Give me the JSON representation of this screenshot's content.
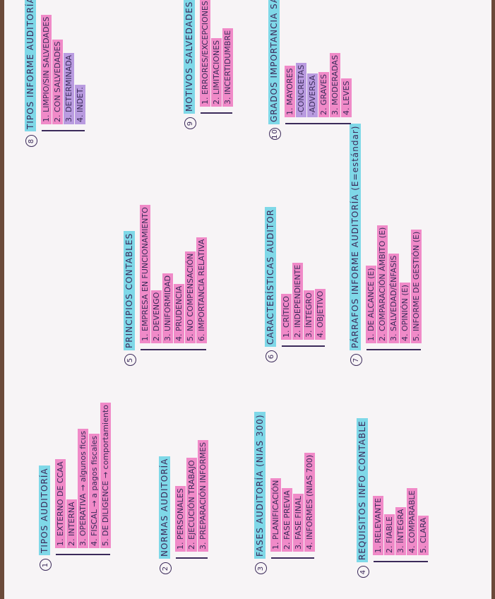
{
  "sections": [
    {
      "number": "1",
      "title": "TIPOS AUDITORÍA",
      "items": [
        "1. EXTERNO DE CCAA",
        "2. INTERNA",
        "3. OPERATIVA → algunos ficus",
        "4. FISCAL → a pagos fiscales",
        "5. DE DILIGENCE → comportamiento"
      ]
    },
    {
      "number": "2",
      "title": "NORMAS AUDITORÍA",
      "items": [
        "1. PERSONALES",
        "2. EJECUCIÓN TRABAJO",
        "3. PREPARACIÓN INFORMES"
      ]
    },
    {
      "number": "3",
      "title": "FASES AUDITORÍA (NIAS 300)",
      "items": [
        "1. PLANIFICACIÓN",
        "2. FASE PREVIA",
        "3. FASE FINAL",
        "4. INFORMES (NIAS 700)"
      ]
    },
    {
      "number": "4",
      "title": "REQUISITOS INFO CONTABLE",
      "items": [
        "1. RELEVANTE",
        "2. FIABLE",
        "3. ÍNTEGRA",
        "4. COMPARABLE",
        "5. CLARA"
      ]
    },
    {
      "number": "5",
      "title": "PRINCIPIOS CONTABLES",
      "items": [
        "1. EMPRESA EN FUNCIONAMIENTO",
        "2. DEVENGO",
        "3. UNIFORMIDAD",
        "4. PRUDENCIA",
        "5. NO COMPENSACIÓN",
        "6. IMPORTANCIA RELATIVA"
      ]
    },
    {
      "number": "6",
      "title": "CARACTERÍSTICAS AUDITOR",
      "items": [
        "1. CRÍTICO",
        "2. INDEPENDIENTE",
        "3. ÍNTEGRO",
        "4. OBJETIVO"
      ]
    },
    {
      "number": "7",
      "title": "PÁRRAFOS INFORME AUDITORÍA (E=estándar)",
      "items": [
        "1. DE ALCANCE (E)",
        "2. COMPARACIÓN ÁMBITO (E)",
        "3. SALVEDAD/ÉNFASIS",
        "4. OPINIÓN (E)",
        "5. INFORME DE GESTIÓN (E)"
      ]
    },
    {
      "number": "8",
      "title": "TIPOS INFORME AUDITORÍA",
      "items": [
        "1. LIMPIO/SIN SALVEDADES",
        "2. CON SALVEDADES",
        "3. DETERMINADA",
        "4. INDET."
      ]
    },
    {
      "number": "9",
      "title": "MOTIVOS SALVEDADES",
      "items": [
        "1. ERRORES/EXCEPCIONES",
        "2. LIMITACIONES",
        "3. INCERTIDUMBRE"
      ]
    },
    {
      "number": "10",
      "title": "GRADOS IMPORTANCIA SALVEDADES",
      "items": [
        "1. MAYORES",
        "-CONCRETAS",
        "-ADVERSA",
        "2. GRAVES",
        "3. MODERADAS",
        "4. LEVES"
      ]
    }
  ]
}
